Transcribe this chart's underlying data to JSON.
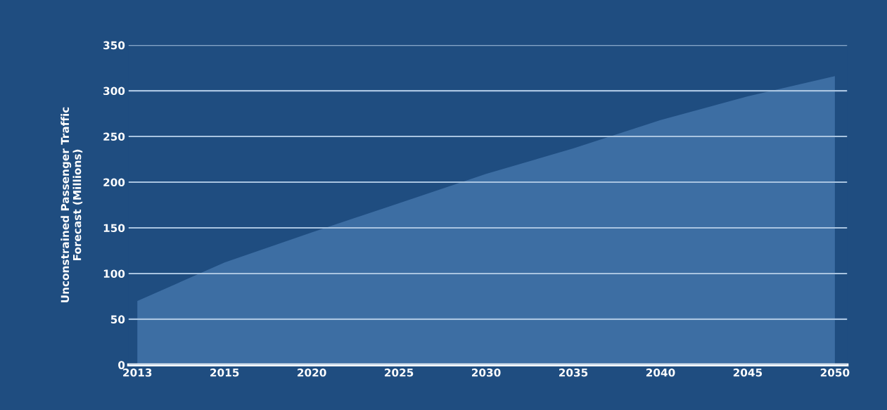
{
  "chart_data": {
    "type": "area",
    "ylabel": "Unconstrained Passenger Traffic\nForecast (Millions)",
    "categories": [
      "2013",
      "2015",
      "2020",
      "2025",
      "2030",
      "2035",
      "2040",
      "2045",
      "2050"
    ],
    "series": [
      {
        "color": "#3d6ea3",
        "values": [
          70,
          112,
          145,
          177,
          209,
          237,
          268,
          294,
          316
        ]
      }
    ],
    "ylim": [
      0,
      350
    ],
    "yticks": [
      0,
      50,
      100,
      150,
      200,
      250,
      300,
      350
    ],
    "grid": "y"
  }
}
